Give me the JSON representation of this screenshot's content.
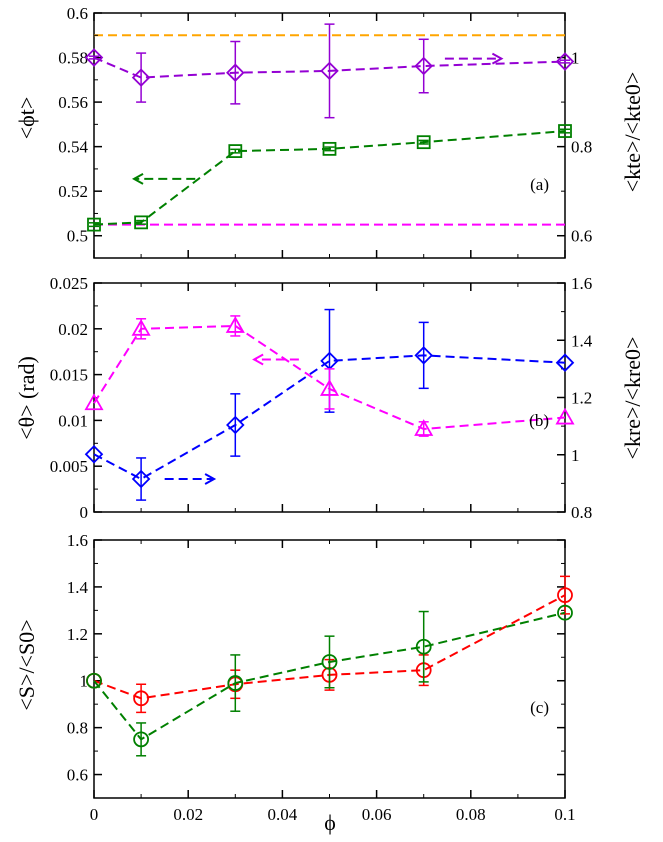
{
  "figure": {
    "xlabel": "ϕ",
    "x_tick_labels": [
      "0",
      "0.02",
      "0.04",
      "0.06",
      "0.08",
      "0.1"
    ]
  },
  "chart_data": [
    {
      "type": "line",
      "panel_label": "(a)",
      "xlim": [
        0,
        0.1
      ],
      "ylim": [
        0.49,
        0.6
      ],
      "ylabel": "<ϕt>",
      "y_tick_labels": [
        "0.5",
        "0.52",
        "0.54",
        "0.56",
        "0.58",
        "0.6"
      ],
      "right_ylim": [
        0.55,
        1.1
      ],
      "right_ylabel": "<kte>/<kte0>",
      "right_tick_labels": [
        "0.6",
        "0.8",
        "1"
      ],
      "series": [
        {
          "name": "<ϕt>",
          "axis": "left",
          "color": "#008000",
          "marker": "square",
          "x": [
            0,
            0.01,
            0.03,
            0.05,
            0.07,
            0.1
          ],
          "y": [
            0.505,
            0.506,
            0.538,
            0.539,
            0.542,
            0.547
          ],
          "err": [
            0.0008,
            0.0008,
            0.0008,
            0.0008,
            0.0008,
            0.0008
          ]
        },
        {
          "name": "<kte>/<kte0>",
          "axis": "right",
          "color": "#9400d3",
          "marker": "diamond",
          "x": [
            0,
            0.01,
            0.03,
            0.05,
            0.07,
            0.1
          ],
          "y": [
            1.0,
            0.955,
            0.966,
            0.97,
            0.981,
            0.991
          ],
          "err": [
            0.003,
            0.055,
            0.07,
            0.105,
            0.06,
            0.003
          ]
        }
      ],
      "reference_lines": [
        {
          "axis": "left",
          "y": 0.59,
          "color": "#ffa500"
        },
        {
          "axis": "left",
          "y": 0.505,
          "color": "#ff00ff"
        }
      ],
      "arrows": [
        {
          "points_to": "right",
          "x_from": 0.0745,
          "x_to": 0.0865,
          "y": 0.5795,
          "color": "#9400d3"
        },
        {
          "points_to": "left",
          "x_from": 0.0215,
          "x_to": 0.0085,
          "y": 0.5255,
          "color": "#008000"
        }
      ]
    },
    {
      "type": "line",
      "panel_label": "(b)",
      "xlim": [
        0,
        0.1
      ],
      "ylim": [
        0,
        0.025
      ],
      "ylabel": "<θ> (rad)",
      "y_tick_labels": [
        "0",
        "0.005",
        "0.01",
        "0.015",
        "0.02",
        "0.025"
      ],
      "right_ylim": [
        0.8,
        1.6
      ],
      "right_ylabel": "<kre>/<kre0>",
      "right_tick_labels": [
        "0.8",
        "1",
        "1.2",
        "1.4",
        "1.6"
      ],
      "series": [
        {
          "name": "<θ>",
          "axis": "left",
          "color": "#0000ff",
          "marker": "diamond",
          "x": [
            0,
            0.01,
            0.03,
            0.05,
            0.07,
            0.1
          ],
          "y": [
            0.0063,
            0.0036,
            0.0095,
            0.0165,
            0.0171,
            0.0163
          ],
          "err": [
            0.0,
            0.0023,
            0.0034,
            0.0056,
            0.0036,
            0.0
          ]
        },
        {
          "name": "<kre>/<kre0>",
          "axis": "right",
          "color": "#ff00ff",
          "marker": "triangle",
          "x": [
            0,
            0.01,
            0.03,
            0.05,
            0.07,
            0.1
          ],
          "y": [
            1.18,
            1.44,
            1.45,
            1.23,
            1.09,
            1.13
          ],
          "err": [
            0.0,
            0.035,
            0.035,
            0.07,
            0.025,
            0.0
          ]
        }
      ],
      "arrows": [
        {
          "points_to": "right",
          "x_from": 0.015,
          "x_to": 0.0255,
          "y": 0.0036,
          "color": "#0000ff"
        },
        {
          "points_to": "left",
          "x_from": 0.0435,
          "x_to": 0.034,
          "y": 0.01665,
          "color": "#ff00ff"
        }
      ]
    },
    {
      "type": "line",
      "panel_label": "(c)",
      "xlim": [
        0,
        0.1
      ],
      "ylim": [
        0.5,
        1.6
      ],
      "ylabel": "<S>/<S0>",
      "y_tick_labels": [
        "0.6",
        "0.8",
        "1",
        "1.2",
        "1.4",
        "1.6"
      ],
      "series": [
        {
          "name": "red",
          "axis": "left",
          "color": "#ff0000",
          "marker": "circle",
          "x": [
            0,
            0.01,
            0.03,
            0.05,
            0.07,
            0.1
          ],
          "y": [
            1.0,
            0.925,
            0.985,
            1.025,
            1.045,
            1.365
          ],
          "err": [
            0.0,
            0.06,
            0.06,
            0.065,
            0.065,
            0.08
          ]
        },
        {
          "name": "green",
          "axis": "left",
          "color": "#008000",
          "marker": "circle",
          "x": [
            0,
            0.01,
            0.03,
            0.05,
            0.07,
            0.1
          ],
          "y": [
            1.0,
            0.75,
            0.99,
            1.08,
            1.145,
            1.29
          ],
          "err": [
            0.0,
            0.07,
            0.12,
            0.11,
            0.15,
            0.0
          ]
        }
      ]
    }
  ]
}
